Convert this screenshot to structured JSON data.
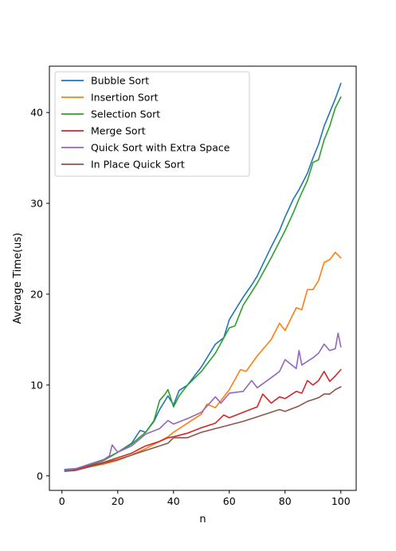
{
  "chart_data": {
    "type": "line",
    "title": "",
    "xlabel": "n",
    "ylabel": "Average Time(us)",
    "xlim": [
      -4.5,
      105.5
    ],
    "ylim": [
      -1.6,
      45.1
    ],
    "xticks": [
      0,
      20,
      40,
      60,
      80,
      100
    ],
    "yticks": [
      0,
      10,
      20,
      30,
      40
    ],
    "grid": false,
    "legend_position": "top-left",
    "series": [
      {
        "name": "Bubble Sort",
        "color": "#1f77b4",
        "x": [
          1,
          5,
          10,
          15,
          20,
          25,
          28,
          30,
          33,
          35,
          38,
          40,
          42,
          45,
          50,
          55,
          58,
          60,
          65,
          68,
          70,
          75,
          78,
          80,
          83,
          85,
          88,
          90,
          92,
          94,
          96,
          98,
          100
        ],
        "y": [
          0.7,
          0.8,
          1.3,
          1.8,
          2.6,
          3.6,
          5.0,
          4.8,
          6.0,
          7.3,
          8.8,
          7.8,
          9.4,
          10.0,
          12.0,
          14.5,
          15.2,
          17.2,
          19.7,
          21.0,
          22.0,
          25.2,
          27.0,
          28.5,
          30.5,
          31.5,
          33.3,
          35.0,
          36.5,
          38.5,
          40.0,
          41.5,
          43.2
        ]
      },
      {
        "name": "Insertion Sort",
        "color": "#ff7f0e",
        "x": [
          1,
          5,
          10,
          15,
          20,
          25,
          30,
          35,
          38,
          40,
          45,
          50,
          52,
          55,
          60,
          64,
          66,
          70,
          75,
          78,
          80,
          84,
          86,
          88,
          90,
          92,
          94,
          96,
          98,
          100
        ],
        "y": [
          0.6,
          0.7,
          1.0,
          1.3,
          1.7,
          2.3,
          3.0,
          3.8,
          4.3,
          4.8,
          5.8,
          6.8,
          7.9,
          7.5,
          9.5,
          11.7,
          11.5,
          13.2,
          15.0,
          16.8,
          16.0,
          18.5,
          18.3,
          20.5,
          20.5,
          21.5,
          23.5,
          23.8,
          24.6,
          24.0
        ]
      },
      {
        "name": "Selection Sort",
        "color": "#2ca02c",
        "x": [
          1,
          5,
          10,
          15,
          20,
          25,
          30,
          33,
          35,
          37,
          38,
          40,
          42,
          45,
          50,
          55,
          60,
          62,
          65,
          70,
          75,
          80,
          83,
          85,
          88,
          90,
          92,
          94,
          96,
          98,
          100
        ],
        "y": [
          0.6,
          0.7,
          1.2,
          1.7,
          2.6,
          3.5,
          4.8,
          6.1,
          8.3,
          9.0,
          9.5,
          7.6,
          8.8,
          10.0,
          11.5,
          13.5,
          16.3,
          16.5,
          18.8,
          21.2,
          24.0,
          27.0,
          29.0,
          30.5,
          32.5,
          34.5,
          34.8,
          37.0,
          38.5,
          40.5,
          41.7
        ]
      },
      {
        "name": "Merge Sort",
        "color": "#d62728",
        "x": [
          1,
          5,
          10,
          15,
          20,
          25,
          28,
          30,
          35,
          38,
          40,
          45,
          50,
          55,
          58,
          60,
          65,
          70,
          72,
          75,
          78,
          80,
          84,
          86,
          88,
          90,
          92,
          94,
          96,
          98,
          100
        ],
        "y": [
          0.6,
          0.7,
          1.1,
          1.5,
          2.0,
          2.5,
          3.0,
          3.3,
          3.8,
          4.2,
          4.3,
          4.7,
          5.3,
          5.8,
          6.7,
          6.4,
          7.0,
          7.6,
          9.0,
          8.0,
          8.7,
          8.5,
          9.3,
          9.1,
          10.5,
          10.0,
          10.5,
          11.5,
          10.4,
          11.0,
          11.7
        ]
      },
      {
        "name": "Quick Sort with Extra Space",
        "color": "#9467bd",
        "x": [
          1,
          5,
          10,
          15,
          17,
          18,
          20,
          25,
          30,
          35,
          38,
          40,
          45,
          50,
          55,
          57,
          60,
          65,
          68,
          70,
          75,
          78,
          80,
          84,
          85,
          86,
          88,
          90,
          92,
          94,
          96,
          98,
          99,
          100
        ],
        "y": [
          0.6,
          0.8,
          1.3,
          1.8,
          2.2,
          3.4,
          2.6,
          3.3,
          4.6,
          5.2,
          6.1,
          5.7,
          6.3,
          7.0,
          8.7,
          8.0,
          9.1,
          9.3,
          10.5,
          9.7,
          10.8,
          11.5,
          12.8,
          11.8,
          13.8,
          12.2,
          12.6,
          13.0,
          13.5,
          14.5,
          13.8,
          14.0,
          15.7,
          14.2
        ]
      },
      {
        "name": "In Place Quick Sort",
        "color": "#8c564b",
        "x": [
          1,
          5,
          10,
          15,
          20,
          25,
          30,
          35,
          38,
          40,
          45,
          50,
          55,
          60,
          65,
          70,
          75,
          78,
          80,
          85,
          88,
          90,
          92,
          94,
          96,
          98,
          100
        ],
        "y": [
          0.5,
          0.6,
          1.0,
          1.4,
          1.8,
          2.3,
          2.8,
          3.3,
          3.6,
          4.2,
          4.2,
          4.8,
          5.2,
          5.6,
          6.0,
          6.5,
          7.0,
          7.3,
          7.1,
          7.7,
          8.2,
          8.4,
          8.6,
          9.0,
          9.0,
          9.5,
          9.8
        ]
      }
    ]
  }
}
